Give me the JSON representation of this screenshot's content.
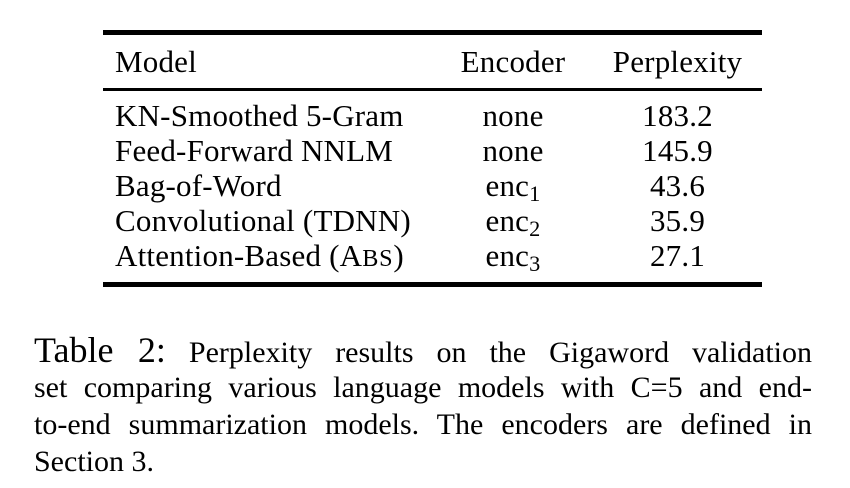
{
  "page": {
    "background": "#ffffff",
    "text_color": "#000000"
  },
  "table": {
    "columns": [
      "Model",
      "Encoder",
      "Perplexity"
    ],
    "rows": [
      {
        "model_prefix": "KN-Smoothed 5-Gram",
        "model_sc": "",
        "model_suffix": "",
        "encoder": "none",
        "encoder_sub": "",
        "perplexity": "183.2"
      },
      {
        "model_prefix": "Feed-Forward NNLM",
        "model_sc": "",
        "model_suffix": "",
        "encoder": "none",
        "encoder_sub": "",
        "perplexity": "145.9"
      },
      {
        "model_prefix": "Bag-of-Word",
        "model_sc": "",
        "model_suffix": "",
        "encoder": "enc",
        "encoder_sub": "1",
        "perplexity": "43.6"
      },
      {
        "model_prefix": "Convolutional (TDNN)",
        "model_sc": "",
        "model_suffix": "",
        "encoder": "enc",
        "encoder_sub": "2",
        "perplexity": "35.9"
      },
      {
        "model_prefix": "Attention-Based (A",
        "model_sc": "BS",
        "model_suffix": ")",
        "encoder": "enc",
        "encoder_sub": "3",
        "perplexity": "27.1"
      }
    ]
  },
  "caption": {
    "label": "Table 2:",
    "lines": [
      "Perplexity results on the Gigaword validation",
      "set comparing various language models with C=5 and end-",
      "to-end summarization models. The encoders are defined in",
      "Section 3."
    ]
  }
}
